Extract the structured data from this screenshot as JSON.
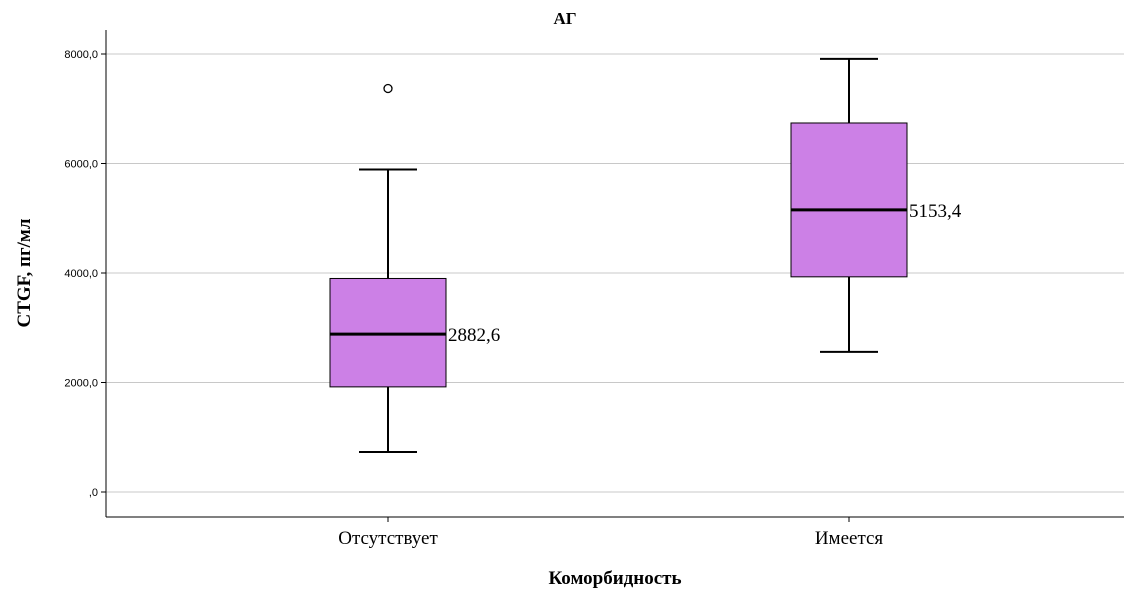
{
  "chart_data": {
    "type": "boxplot",
    "title": "АГ",
    "xlabel": "Коморбидность",
    "ylabel": "CTGF, пг/мл",
    "ylim": [
      0,
      8000
    ],
    "yticks": [
      0,
      2000,
      4000,
      6000,
      8000
    ],
    "ytick_labels": [
      ",0",
      "2000,0",
      "4000,0",
      "6000,0",
      "8000,0"
    ],
    "grid": true,
    "box_color": "#cc80e6",
    "categories": [
      "Отсутствует",
      "Имеется"
    ],
    "boxes": [
      {
        "category": "Отсутствует",
        "whisker_low": 730,
        "q1": 1920,
        "median": 2882.6,
        "q3": 3900,
        "whisker_high": 5890,
        "outliers": [
          7370
        ],
        "median_label": "2882,6"
      },
      {
        "category": "Имеется",
        "whisker_low": 2560,
        "q1": 3930,
        "median": 5153.4,
        "q3": 6740,
        "whisker_high": 7910,
        "outliers": [],
        "median_label": "5153,4"
      }
    ]
  }
}
